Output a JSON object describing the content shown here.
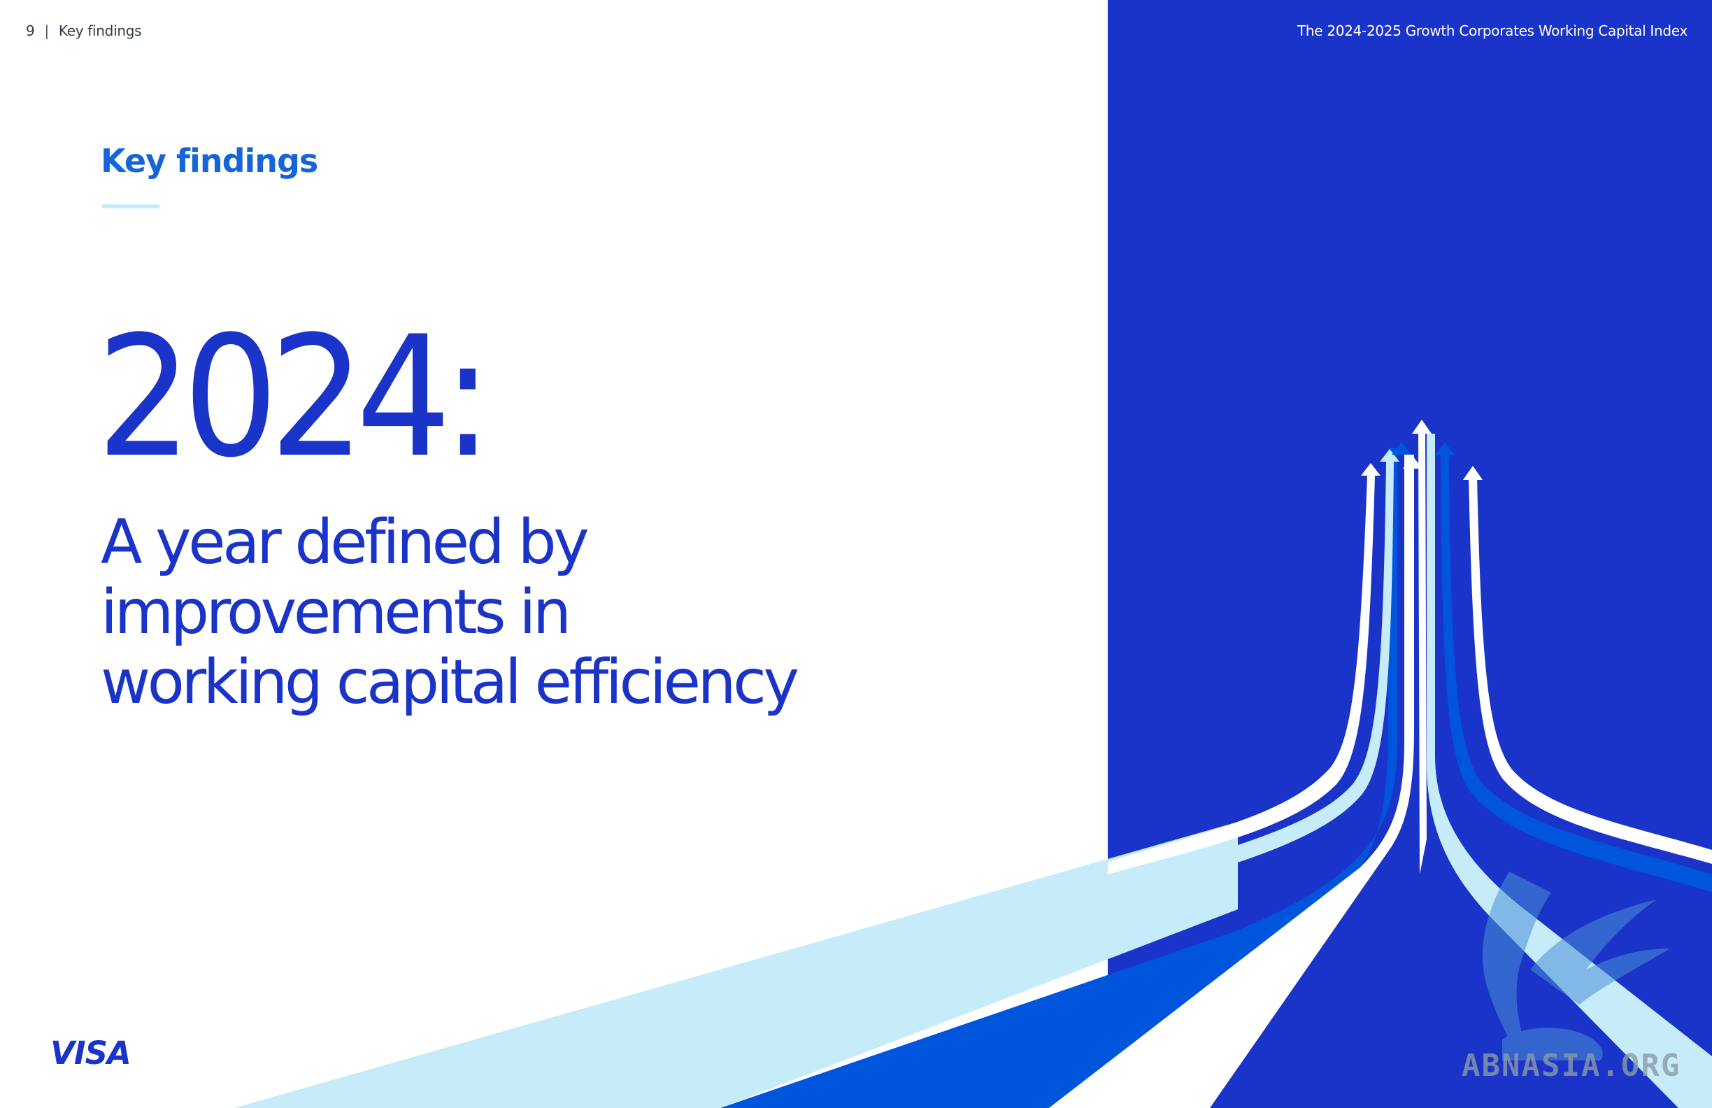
{
  "header": {
    "page_number": "9",
    "separator": "|",
    "section": "Key findings",
    "report_title": "The 2024-2025 Growth Corporates Working Capital Index"
  },
  "main": {
    "section_title": "Key findings",
    "year": "2024:",
    "headline_lines": [
      "A year defined by",
      "improvements in",
      "working capital efficiency"
    ]
  },
  "footer": {
    "logo": "VISA"
  },
  "watermark": {
    "text": "ABNASIA.ORG"
  },
  "colors": {
    "brand_blue": "#1a33c8",
    "accent_blue": "#1565d8",
    "light_blue": "#c6ecfa",
    "panel_blue": "#1a33c8",
    "mid_blue": "#0055dd"
  },
  "icons": {
    "arrows": "upward-arrows-illustration",
    "watermark": "winged-lion-watermark"
  }
}
